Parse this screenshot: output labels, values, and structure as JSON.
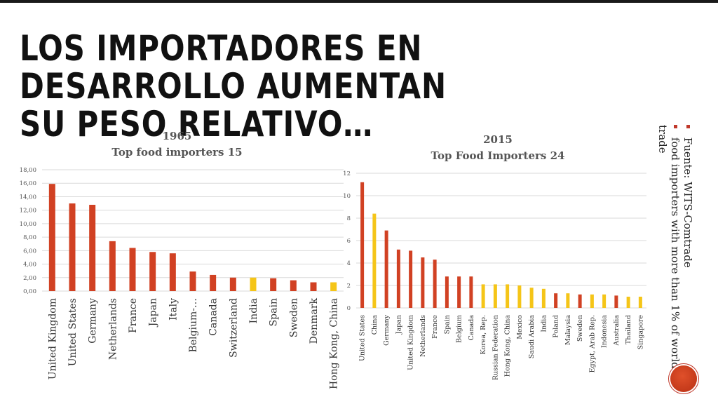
{
  "slide": {
    "title_line1": "LOS IMPORTADORES EN DESARROLLO AUMENTAN",
    "title_line2": "SU PESO RELATIVO…",
    "notes": [
      "Fuente: WITS-Comtrade",
      "food importers with more than 1% of world trade"
    ]
  },
  "colors": {
    "developed": "#d14123",
    "developing": "#f5c518",
    "grid": "#d9d9d9",
    "title_text": "#555555"
  },
  "chart_data": [
    {
      "type": "bar",
      "title_line1": "1965",
      "title_line2": "Top food importers  15",
      "ylim": [
        0,
        18
      ],
      "yticks": [
        "0,00",
        "2,00",
        "4,00",
        "6,00",
        "8,00",
        "10,00",
        "12,00",
        "14,00",
        "16,00",
        "18,00"
      ],
      "categories": [
        "United Kingdom",
        "United States",
        "Germany",
        "Netherlands",
        "France",
        "Japan",
        "Italy",
        "Belgium-…",
        "Canada",
        "Switzerland",
        "India",
        "Spain",
        "Sweden",
        "Denmark",
        "Hong Kong, China"
      ],
      "values": [
        15.9,
        13.0,
        12.8,
        7.4,
        6.4,
        5.8,
        5.6,
        2.9,
        2.4,
        2.0,
        2.0,
        1.9,
        1.6,
        1.3,
        1.3
      ],
      "groups": [
        "developed",
        "developed",
        "developed",
        "developed",
        "developed",
        "developed",
        "developed",
        "developed",
        "developed",
        "developed",
        "developing",
        "developed",
        "developed",
        "developed",
        "developing"
      ]
    },
    {
      "type": "bar",
      "title_line1": "2015",
      "title_line2": "Top  Food Importers 24",
      "ylim": [
        0,
        12
      ],
      "yticks": [
        "0",
        "2",
        "4",
        "6",
        "8",
        "10",
        "12"
      ],
      "categories": [
        "United States",
        "China",
        "Germany",
        "Japan",
        "United Kingdom",
        "Netherlands",
        "France",
        "Spain",
        "Belgium",
        "Canada",
        "Korea, Rep.",
        "Russian Federation",
        "Hong Kong, China",
        "Mexico",
        "Saudi Arabia",
        "India",
        "Poland",
        "Malaysia",
        "Sweden",
        "Egypt, Arab Rep.",
        "Indonesia",
        "Australia",
        "Thailand",
        "Singapore"
      ],
      "values": [
        11.2,
        8.4,
        6.9,
        5.2,
        5.1,
        4.5,
        4.3,
        2.8,
        2.8,
        2.8,
        2.1,
        2.1,
        2.1,
        2.0,
        1.8,
        1.7,
        1.3,
        1.3,
        1.2,
        1.2,
        1.2,
        1.1,
        1.0,
        1.0
      ],
      "groups": [
        "developed",
        "developing",
        "developed",
        "developed",
        "developed",
        "developed",
        "developed",
        "developed",
        "developed",
        "developed",
        "developing",
        "developing",
        "developing",
        "developing",
        "developing",
        "developing",
        "developed",
        "developing",
        "developed",
        "developing",
        "developing",
        "developed",
        "developing",
        "developing"
      ]
    }
  ]
}
